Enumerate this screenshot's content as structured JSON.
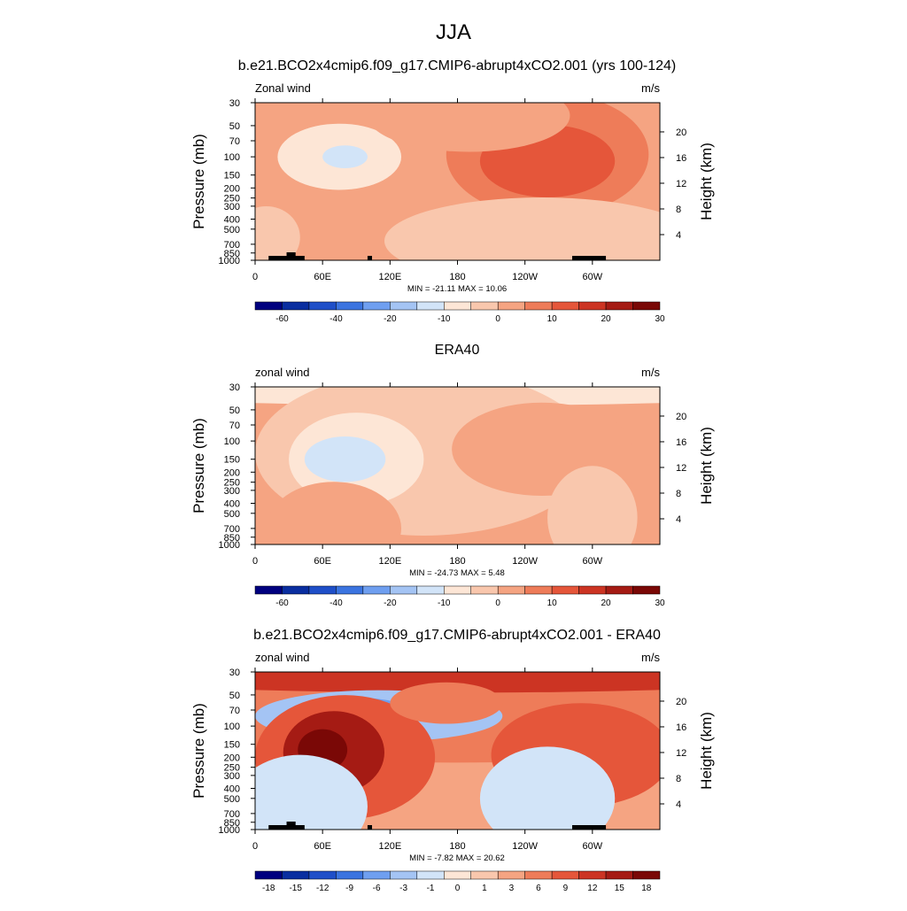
{
  "figure_title": "JJA",
  "panels": [
    {
      "title": "b.e21.BCO2x4cmip6.f09_g17.CMIP6-abrupt4xCO2.001 (yrs 100-124)",
      "left_label": "Zonal wind",
      "right_label": "m/s",
      "stats": "MIN = -21.11  MAX =  10.06"
    },
    {
      "title": "ERA40",
      "left_label": "zonal wind",
      "right_label": "m/s",
      "stats": "MIN = -24.73  MAX =   5.48"
    },
    {
      "title": "b.e21.BCO2x4cmip6.f09_g17.CMIP6-abrupt4xCO2.001 - ERA40",
      "left_label": "zonal wind",
      "right_label": "m/s",
      "stats": "MIN =  -7.82  MAX =  20.62"
    }
  ],
  "axes": {
    "ylabel_left": "Pressure (mb)",
    "ylabel_right": "Height (km)",
    "pressure_ticks": [
      "30",
      "50",
      "70",
      "100",
      "150",
      "200",
      "250",
      "300",
      "400",
      "500",
      "700",
      "850",
      "1000"
    ],
    "height_ticks": [
      "20",
      "16",
      "12",
      "8",
      "4"
    ],
    "lon_ticks": [
      "0",
      "60E",
      "120E",
      "180",
      "120W",
      "60W"
    ]
  },
  "colors": {
    "scale": [
      "#00007f",
      "#0a2ea0",
      "#1f4fc8",
      "#3b74e0",
      "#6f9ff0",
      "#a4c4f4",
      "#d2e4f8",
      "#fde6d6",
      "#f9c7ad",
      "#f5a482",
      "#ee7c59",
      "#e5563a",
      "#cc3423",
      "#a51b14",
      "#7a0806"
    ],
    "background": "#ffffff",
    "topography": "#000000"
  },
  "chart_data": [
    {
      "type": "heatmap",
      "title": "b.e21.BCO2x4cmip6.f09_g17.CMIP6-abrupt4xCO2.001 (yrs 100-124)",
      "xlabel": "",
      "ylabel": "Pressure (mb)",
      "y2label": "Height (km)",
      "xlim": [
        0,
        360
      ],
      "ylim": [
        1000,
        30
      ],
      "y_scale": "log",
      "colorbar": {
        "labels": [
          "-60",
          "-40",
          "-20",
          "-10",
          "0",
          "10",
          "20",
          "30"
        ]
      },
      "min": -21.11,
      "max": 10.06,
      "features": [
        {
          "lon": 0,
          "p": 1000,
          "rx": 360,
          "ry": 1.6,
          "v": 2
        },
        {
          "lon": 75,
          "p": 100,
          "rx": 55,
          "ry": 0.32,
          "v": -6
        },
        {
          "lon": 80,
          "p": 100,
          "rx": 38,
          "ry": 0.2,
          "v": -10
        },
        {
          "lon": 80,
          "p": 100,
          "rx": 20,
          "ry": 0.11,
          "v": -16
        },
        {
          "lon": 260,
          "p": 95,
          "rx": 90,
          "ry": 0.6,
          "v": 6
        },
        {
          "lon": 260,
          "p": 110,
          "rx": 60,
          "ry": 0.35,
          "v": 10
        },
        {
          "lon": 190,
          "p": 40,
          "rx": 90,
          "ry": 0.35,
          "v": 4
        },
        {
          "lon": 255,
          "p": 650,
          "rx": 140,
          "ry": 0.42,
          "v": -3
        },
        {
          "lon": 10,
          "p": 600,
          "rx": 30,
          "ry": 0.3,
          "v": -3
        }
      ]
    },
    {
      "type": "heatmap",
      "title": "ERA40",
      "xlabel": "",
      "ylabel": "Pressure (mb)",
      "y2label": "Height (km)",
      "xlim": [
        0,
        360
      ],
      "ylim": [
        1000,
        30
      ],
      "y_scale": "log",
      "colorbar": {
        "labels": [
          "-60",
          "-40",
          "-20",
          "-10",
          "0",
          "10",
          "20",
          "30"
        ]
      },
      "min": -24.73,
      "max": 5.48,
      "features": [
        {
          "lon": 0,
          "p": 1000,
          "rx": 360,
          "ry": 1.6,
          "v": 1
        },
        {
          "lon": 180,
          "p": 30,
          "rx": 360,
          "ry": 0.18,
          "v": -6
        },
        {
          "lon": 150,
          "p": 130,
          "rx": 150,
          "ry": 0.8,
          "v": -3
        },
        {
          "lon": 90,
          "p": 150,
          "rx": 60,
          "ry": 0.45,
          "v": -8
        },
        {
          "lon": 80,
          "p": 150,
          "rx": 36,
          "ry": 0.22,
          "v": -14
        },
        {
          "lon": 75,
          "p": 150,
          "rx": 20,
          "ry": 0.1,
          "v": -20
        },
        {
          "lon": 255,
          "p": 120,
          "rx": 80,
          "ry": 0.45,
          "v": 4
        },
        {
          "lon": 70,
          "p": 700,
          "rx": 60,
          "ry": 0.45,
          "v": 4
        },
        {
          "lon": 300,
          "p": 550,
          "rx": 40,
          "ry": 0.5,
          "v": -3
        }
      ]
    },
    {
      "type": "heatmap",
      "title": "b.e21.BCO2x4cmip6.f09_g17.CMIP6-abrupt4xCO2.001 - ERA40",
      "xlabel": "",
      "ylabel": "Pressure (mb)",
      "y2label": "Height (km)",
      "xlim": [
        0,
        360
      ],
      "ylim": [
        1000,
        30
      ],
      "y_scale": "log",
      "colorbar": {
        "labels": [
          "-18",
          "-15",
          "-12",
          "-9",
          "-6",
          "-3",
          "-1",
          "0",
          "1",
          "3",
          "6",
          "9",
          "12",
          "15",
          "18"
        ]
      },
      "min": -7.82,
      "max": 20.62,
      "features": [
        {
          "lon": 180,
          "p": 45,
          "rx": 360,
          "ry": 0.7,
          "v": 4
        },
        {
          "lon": 180,
          "p": 30,
          "rx": 360,
          "ry": 0.2,
          "v": 10
        },
        {
          "lon": 110,
          "p": 80,
          "rx": 110,
          "ry": 0.25,
          "v": -4
        },
        {
          "lon": 90,
          "p": 75,
          "rx": 50,
          "ry": 0.15,
          "v": -8
        },
        {
          "lon": 80,
          "p": 200,
          "rx": 80,
          "ry": 0.6,
          "v": 8
        },
        {
          "lon": 70,
          "p": 180,
          "rx": 45,
          "ry": 0.4,
          "v": 12
        },
        {
          "lon": 60,
          "p": 170,
          "rx": 22,
          "ry": 0.2,
          "v": 17
        },
        {
          "lon": 290,
          "p": 190,
          "rx": 80,
          "ry": 0.5,
          "v": 6
        },
        {
          "lon": 260,
          "p": 500,
          "rx": 60,
          "ry": 0.5,
          "v": -3
        },
        {
          "lon": 40,
          "p": 600,
          "rx": 60,
          "ry": 0.5,
          "v": -3
        },
        {
          "lon": 170,
          "p": 60,
          "rx": 50,
          "ry": 0.2,
          "v": 3
        }
      ]
    }
  ]
}
